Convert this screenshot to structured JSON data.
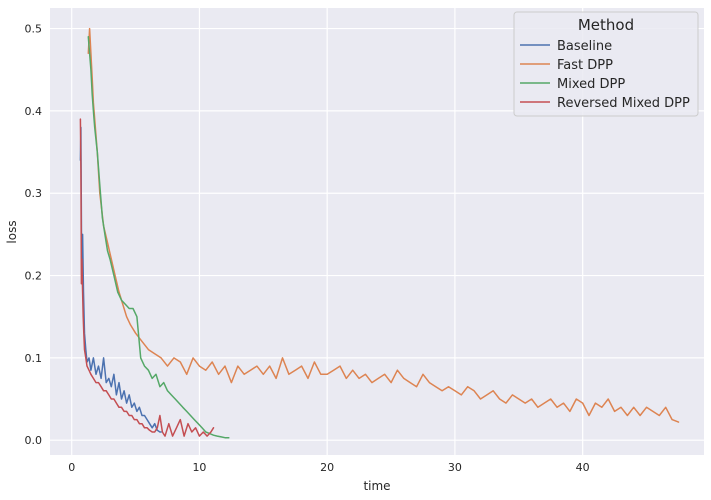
{
  "chart_data": {
    "type": "line",
    "title": "",
    "xlabel": "time",
    "ylabel": "loss",
    "xlim": [
      -1.7,
      49.5
    ],
    "ylim": [
      -0.018,
      0.525
    ],
    "xticks": [
      0,
      10,
      20,
      30,
      40
    ],
    "xtick_labels": [
      "0",
      "10",
      "20",
      "30",
      "40"
    ],
    "yticks": [
      0.0,
      0.1,
      0.2,
      0.3,
      0.4,
      0.5
    ],
    "ytick_labels": [
      "0.0",
      "0.1",
      "0.2",
      "0.3",
      "0.4",
      "0.5"
    ],
    "grid": true,
    "legend": {
      "title": "Method",
      "placement": "top-right"
    },
    "series": [
      {
        "name": "Baseline",
        "color": "#4c72b0",
        "x": [
          0.68,
          0.72,
          0.78,
          0.85,
          0.92,
          1.0,
          1.1,
          1.2,
          1.35,
          1.5,
          1.7,
          1.9,
          2.1,
          2.3,
          2.5,
          2.7,
          2.9,
          3.1,
          3.3,
          3.5,
          3.7,
          3.9,
          4.1,
          4.3,
          4.5,
          4.7,
          4.9,
          5.1,
          5.3,
          5.5,
          5.7,
          5.9,
          6.1,
          6.3,
          6.5,
          6.7,
          6.9,
          7.0
        ],
        "y": [
          0.34,
          0.38,
          0.2,
          0.25,
          0.18,
          0.13,
          0.11,
          0.095,
          0.1,
          0.085,
          0.1,
          0.08,
          0.09,
          0.075,
          0.1,
          0.07,
          0.075,
          0.065,
          0.08,
          0.055,
          0.07,
          0.05,
          0.06,
          0.045,
          0.055,
          0.04,
          0.045,
          0.035,
          0.04,
          0.03,
          0.03,
          0.025,
          0.02,
          0.015,
          0.02,
          0.012,
          0.01,
          0.01
        ]
      },
      {
        "name": "Fast DPP",
        "color": "#dd8452",
        "x": [
          1.3,
          1.4,
          1.5,
          1.6,
          1.7,
          1.8,
          2.0,
          2.2,
          2.5,
          2.8,
          3.1,
          3.4,
          3.7,
          4.0,
          4.3,
          4.6,
          5.0,
          5.5,
          6.0,
          6.5,
          7.0,
          7.5,
          8.0,
          8.5,
          9.0,
          9.5,
          10.0,
          10.5,
          11.0,
          11.5,
          12.0,
          12.5,
          13.0,
          13.5,
          14.0,
          14.5,
          15.0,
          15.5,
          16.0,
          16.5,
          17.0,
          17.5,
          18.0,
          18.5,
          19.0,
          19.5,
          20.0,
          20.5,
          21.0,
          21.5,
          22.0,
          22.5,
          23.0,
          23.5,
          24.0,
          24.5,
          25.0,
          25.5,
          26.0,
          26.5,
          27.0,
          27.5,
          28.0,
          28.5,
          29.0,
          29.5,
          30.0,
          30.5,
          31.0,
          31.5,
          32.0,
          32.5,
          33.0,
          33.5,
          34.0,
          34.5,
          35.0,
          35.5,
          36.0,
          36.5,
          37.0,
          37.5,
          38.0,
          38.5,
          39.0,
          39.5,
          40.0,
          40.5,
          41.0,
          41.5,
          42.0,
          42.5,
          43.0,
          43.5,
          44.0,
          44.5,
          45.0,
          45.5,
          46.0,
          46.5,
          47.0,
          47.5
        ],
        "y": [
          0.47,
          0.5,
          0.47,
          0.44,
          0.41,
          0.39,
          0.35,
          0.3,
          0.26,
          0.24,
          0.22,
          0.2,
          0.18,
          0.165,
          0.15,
          0.14,
          0.13,
          0.12,
          0.11,
          0.105,
          0.1,
          0.09,
          0.1,
          0.095,
          0.08,
          0.1,
          0.09,
          0.085,
          0.095,
          0.08,
          0.09,
          0.07,
          0.09,
          0.08,
          0.085,
          0.09,
          0.08,
          0.09,
          0.075,
          0.1,
          0.08,
          0.085,
          0.09,
          0.075,
          0.095,
          0.08,
          0.08,
          0.085,
          0.09,
          0.075,
          0.085,
          0.075,
          0.08,
          0.07,
          0.075,
          0.08,
          0.07,
          0.085,
          0.075,
          0.07,
          0.065,
          0.08,
          0.07,
          0.065,
          0.06,
          0.065,
          0.06,
          0.055,
          0.065,
          0.06,
          0.05,
          0.055,
          0.06,
          0.05,
          0.045,
          0.055,
          0.05,
          0.045,
          0.05,
          0.04,
          0.045,
          0.05,
          0.04,
          0.045,
          0.035,
          0.05,
          0.045,
          0.03,
          0.045,
          0.04,
          0.05,
          0.035,
          0.04,
          0.03,
          0.04,
          0.03,
          0.04,
          0.035,
          0.03,
          0.04,
          0.025,
          0.022
        ]
      },
      {
        "name": "Mixed DPP",
        "color": "#55a868",
        "x": [
          1.3,
          1.4,
          1.5,
          1.6,
          1.7,
          1.8,
          2.0,
          2.2,
          2.4,
          2.6,
          2.8,
          3.0,
          3.3,
          3.6,
          3.9,
          4.2,
          4.5,
          4.8,
          5.1,
          5.4,
          5.7,
          6.0,
          6.3,
          6.6,
          6.9,
          7.2,
          7.5,
          7.8,
          8.1,
          8.4,
          8.7,
          9.0,
          9.3,
          9.6,
          9.9,
          10.2,
          10.5,
          10.8,
          11.1,
          11.4,
          11.7,
          12.0,
          12.3
        ],
        "y": [
          0.49,
          0.47,
          0.45,
          0.42,
          0.4,
          0.38,
          0.35,
          0.31,
          0.27,
          0.25,
          0.23,
          0.22,
          0.2,
          0.18,
          0.17,
          0.165,
          0.16,
          0.16,
          0.15,
          0.1,
          0.09,
          0.085,
          0.075,
          0.08,
          0.065,
          0.07,
          0.06,
          0.055,
          0.05,
          0.045,
          0.04,
          0.035,
          0.03,
          0.025,
          0.02,
          0.015,
          0.01,
          0.008,
          0.006,
          0.005,
          0.004,
          0.003,
          0.003
        ]
      },
      {
        "name": "Reversed Mixed DPP",
        "color": "#c44e52",
        "x": [
          0.68,
          0.72,
          0.76,
          0.8,
          0.85,
          0.9,
          0.95,
          1.0,
          1.1,
          1.2,
          1.35,
          1.5,
          1.7,
          1.9,
          2.1,
          2.3,
          2.5,
          2.7,
          2.9,
          3.1,
          3.3,
          3.5,
          3.7,
          3.9,
          4.1,
          4.3,
          4.5,
          4.7,
          4.9,
          5.1,
          5.3,
          5.5,
          5.7,
          5.9,
          6.1,
          6.3,
          6.5,
          6.7,
          6.9,
          7.1,
          7.3,
          7.6,
          7.9,
          8.2,
          8.5,
          8.8,
          9.1,
          9.4,
          9.7,
          10.0,
          10.3,
          10.6,
          10.9,
          11.1
        ],
        "y": [
          0.39,
          0.33,
          0.19,
          0.22,
          0.18,
          0.15,
          0.13,
          0.11,
          0.1,
          0.09,
          0.085,
          0.08,
          0.075,
          0.07,
          0.07,
          0.065,
          0.06,
          0.06,
          0.055,
          0.05,
          0.05,
          0.045,
          0.04,
          0.04,
          0.035,
          0.035,
          0.03,
          0.03,
          0.025,
          0.025,
          0.02,
          0.02,
          0.015,
          0.015,
          0.012,
          0.01,
          0.01,
          0.015,
          0.03,
          0.01,
          0.005,
          0.02,
          0.005,
          0.015,
          0.025,
          0.005,
          0.02,
          0.01,
          0.015,
          0.005,
          0.01,
          0.005,
          0.01,
          0.015
        ]
      }
    ]
  }
}
